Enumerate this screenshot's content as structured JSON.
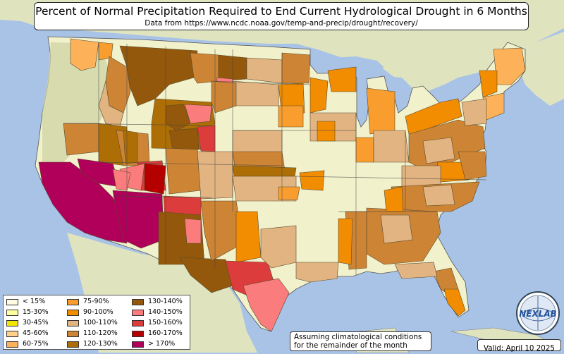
{
  "title": "Percent of Normal Precipitation Required to End Current Hydrological Drought in 6 Months",
  "subtitle": "Data from https://www.ncdc.noaa.gov/temp-and-precip/drought/recovery/",
  "legend": [
    {
      "label": "< 15%",
      "color": "#fffbe0"
    },
    {
      "label": "15-30%",
      "color": "#ffff9e"
    },
    {
      "label": "30-45%",
      "color": "#f2e600"
    },
    {
      "label": "45-60%",
      "color": "#ffd08a"
    },
    {
      "label": "60-75%",
      "color": "#fdb25a"
    },
    {
      "label": "75-90%",
      "color": "#f99e2e"
    },
    {
      "label": "90-100%",
      "color": "#f28c00"
    },
    {
      "label": "100-110%",
      "color": "#e2b482"
    },
    {
      "label": "110-120%",
      "color": "#cd8434"
    },
    {
      "label": "120-130%",
      "color": "#ad6e06"
    },
    {
      "label": "130-140%",
      "color": "#93580c"
    },
    {
      "label": "140-150%",
      "color": "#fb7c7c"
    },
    {
      "label": "150-160%",
      "color": "#dc3c3c"
    },
    {
      "label": "160-170%",
      "color": "#b40000"
    },
    {
      "label": "> 170%",
      "color": "#b0005a"
    }
  ],
  "note": {
    "line1": "Assuming climatological conditions",
    "line2": "for the remainder of the month"
  },
  "valid": "Valid: April 10 2025",
  "logo_text": "NEXLAB",
  "colors": {
    "water": "#a9c3e6",
    "land": "#dde3b7",
    "no_drought": "#f1f1cc",
    "mountains": "#b9c69a",
    "borders": "#444444"
  }
}
